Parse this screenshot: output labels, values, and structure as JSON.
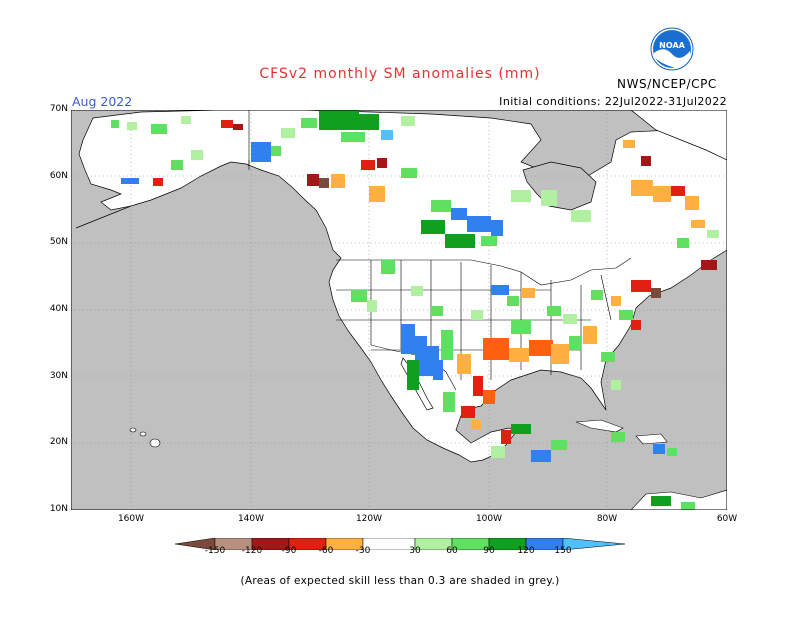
{
  "header": {
    "title": "CFSv2 monthly SM anomalies (mm)",
    "month": "Aug 2022",
    "initial_conditions": "Initial conditions: 22Jul2022-31Jul2022",
    "agency": "NWS/NCEP/CPC",
    "logo_text": "NOAA"
  },
  "axes": {
    "lat_labels": [
      "70N",
      "60N",
      "50N",
      "40N",
      "30N",
      "20N",
      "10N"
    ],
    "lon_labels": [
      "160W",
      "140W",
      "120W",
      "100W",
      "80W",
      "60W"
    ]
  },
  "legend": {
    "labels": [
      "-150",
      "-120",
      "-90",
      "-60",
      "-30",
      "30",
      "60",
      "90",
      "120",
      "150"
    ],
    "colors": [
      "#7a4a3a",
      "#b89080",
      "#a01818",
      "#e02010",
      "#ff6010",
      "#ffb040",
      "#ffffff",
      "#b0f0a0",
      "#60e060",
      "#10a020",
      "#3080f0",
      "#50c0ff"
    ]
  },
  "colors": {
    "ocean_land_noskill": "#c0c0c0",
    "land": "#ffffff",
    "title": "#e63232",
    "month": "#3a5bd6"
  },
  "footnote": "(Areas of expected skill less than 0.3 are shaded in grey.)"
}
